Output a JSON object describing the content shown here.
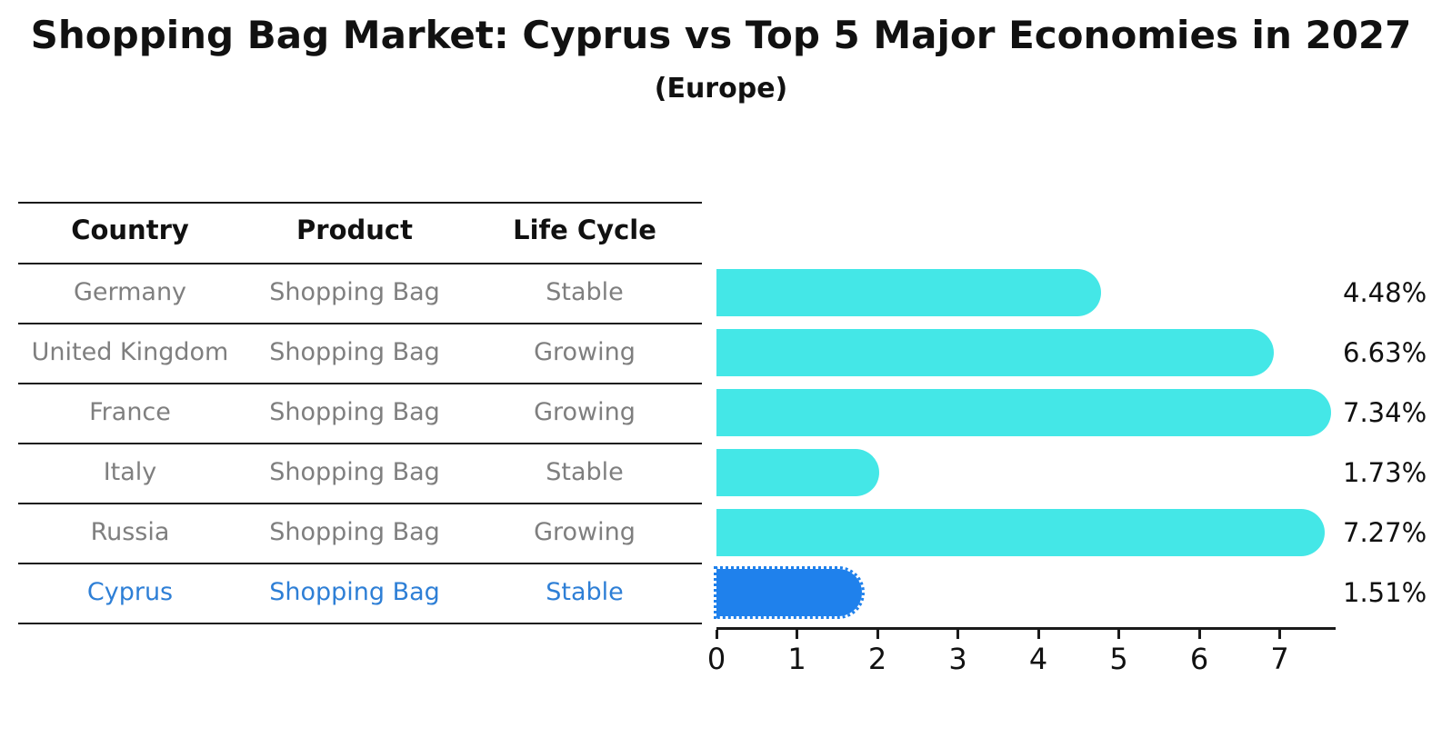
{
  "title": "Shopping Bag Market: Cyprus vs Top 5 Major Economies in 2027",
  "subtitle": "(Europe)",
  "table": {
    "headers": [
      "Country",
      "Product",
      "Life Cycle"
    ],
    "rows": [
      {
        "country": "Germany",
        "product": "Shopping Bag",
        "life_cycle": "Stable",
        "highlight": false
      },
      {
        "country": "United Kingdom",
        "product": "Shopping Bag",
        "life_cycle": "Growing",
        "highlight": false
      },
      {
        "country": "France",
        "product": "Shopping Bag",
        "life_cycle": "Growing",
        "highlight": false
      },
      {
        "country": "Italy",
        "product": "Shopping Bag",
        "life_cycle": "Stable",
        "highlight": false
      },
      {
        "country": "Russia",
        "product": "Shopping Bag",
        "life_cycle": "Growing",
        "highlight": false
      },
      {
        "country": "Cyprus",
        "product": "Shopping Bag",
        "life_cycle": "Stable",
        "highlight": true
      }
    ]
  },
  "chart_data": {
    "type": "bar",
    "orientation": "horizontal",
    "categories": [
      "Germany",
      "United Kingdom",
      "France",
      "Italy",
      "Russia",
      "Cyprus"
    ],
    "values": [
      4.48,
      6.63,
      7.34,
      1.73,
      7.27,
      1.51
    ],
    "value_labels": [
      "4.48%",
      "6.63%",
      "7.34%",
      "1.73%",
      "7.27%",
      "1.51%"
    ],
    "highlight_category": "Cyprus",
    "x_ticks": [
      "0",
      "1",
      "2",
      "3",
      "4",
      "5",
      "6",
      "7"
    ],
    "xlim": [
      0,
      7.68
    ],
    "grid": false,
    "legend": "none",
    "colors": {
      "bar": "#44e7e7",
      "highlight_bar": "#1f81ec",
      "highlight_text": "#2e7fd6",
      "table_text": "#7f7f7f",
      "header_text": "#111111",
      "axis": "#1a1a1a"
    }
  }
}
